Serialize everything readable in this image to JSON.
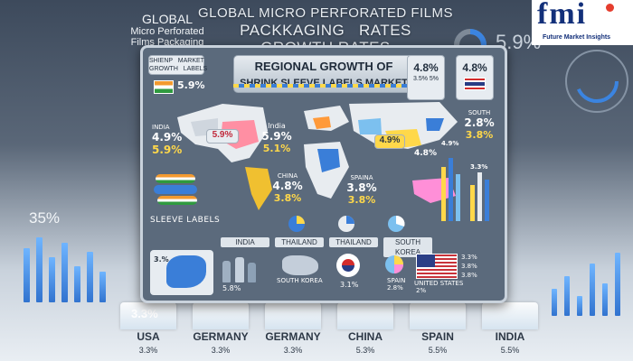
{
  "header": {
    "global_title_line1": "GLOBAL MICRO PERFORATED FILMS",
    "global_title_line2": "PACKKAGING   RATES",
    "global_title_line3": "GROWTH RATES",
    "left_title_line1": "GLOBAL",
    "left_title_line2": "Micro Perforated",
    "left_title_line3": "Films Packaging"
  },
  "logo": {
    "text": "fmi",
    "tagline": "Future Market Insights"
  },
  "background": {
    "right_percent": "5.9%",
    "left_percent": "35%"
  },
  "card": {
    "title_line1": "REGIONAL GROWTH OF",
    "title_line2": "SHRINK SLEEVE LABELS MARKET",
    "top_left_box": "SHIENP   MARKET\nGROWTH   LABELS",
    "top_left_pct": "5.9%",
    "top_right_box1_pct": "4.8%",
    "top_right_box1_sub": "3.5% 5%",
    "top_right_box2_pct": "4.8%",
    "india_label": "INDIA",
    "india_pct1": "4.9%",
    "india_pct2": "5.9%",
    "map_india_pct": "5.9%",
    "map_india_label": "India",
    "map_india_pct2": "5.9%",
    "map_india_pct3": "5.1%",
    "china_label": "CHINA",
    "china_pct1": "4.8%",
    "china_pct2": "3.8%",
    "spain_label": "SPAINA",
    "spain_pct1": "3.8%",
    "spain_pct2": "3.8%",
    "asia_pct": "4.9%",
    "aus_pct": "4.8%",
    "south_label": "SOUTH",
    "south_pct1": "2.8%",
    "south_pct2": "3.8%",
    "right_pct_small": "4.9%",
    "right_pct_small2": "3.3%",
    "sleeve_label": "SLEEVE LABELS",
    "strip_labels": [
      "INDIA",
      "THAILAND",
      "THAILAND",
      "SOUTH KOREA"
    ],
    "bottom_left_pct": "3.%",
    "bottom_pct_1": "5.8%",
    "south_korea_label": "SOUTH KOREA",
    "bottom_pct_2": "3.1%",
    "spain_bottom_label": "SPAIN",
    "spain_bottom_pct": "2.8%",
    "us_pcts": [
      "3.3%",
      "3.8%",
      "3.8%"
    ],
    "us_label": "UNITED STATES",
    "us_bottom_pct": "2%"
  },
  "columns": [
    {
      "label": "USA",
      "top": "3.3%",
      "value": "3.3%"
    },
    {
      "label": "GERMANY",
      "top": "",
      "value": "3.3%"
    },
    {
      "label": "GERMANY",
      "top": "",
      "value": "3.3%"
    },
    {
      "label": "CHINA",
      "top": "",
      "value": "5.3%"
    },
    {
      "label": "SPAIN",
      "top": "",
      "value": "5.5%"
    },
    {
      "label": "INDIA",
      "top": "",
      "value": "5.5%"
    }
  ],
  "colors": {
    "accent_yellow": "#ffd84a",
    "bar_blue": "#3173cf",
    "card_bg": "#5b6a7c",
    "logo_navy": "#13307a"
  }
}
